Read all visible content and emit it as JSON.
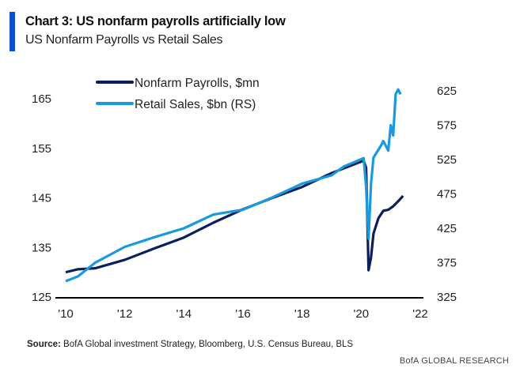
{
  "header": {
    "title": "Chart 3: US nonfarm payrolls artificially low",
    "subtitle": "US Nonfarm Payrolls vs Retail Sales"
  },
  "footer": {
    "source_label": "Source:",
    "source_text": "BofA Global investment Strategy, Bloomberg, U.S. Census Bureau, BLS",
    "brand": "BofA GLOBAL RESEARCH"
  },
  "chart_data": {
    "type": "line",
    "title": "Chart 3: US nonfarm payrolls artificially low",
    "subtitle": "US Nonfarm Payrolls vs Retail Sales",
    "x_ticks": [
      "'10",
      "'12",
      "'14",
      "'16",
      "'18",
      "'20",
      "'22"
    ],
    "xlim": [
      2010,
      2022
    ],
    "y_left": {
      "lim": [
        125,
        165
      ],
      "ticks": [
        125,
        135,
        145,
        155,
        165
      ]
    },
    "y_right": {
      "lim": [
        325,
        625
      ],
      "ticks": [
        325,
        375,
        425,
        475,
        525,
        575,
        625
      ]
    },
    "grid": false,
    "legend_placement": "top-left",
    "series": [
      {
        "name": "Nonfarm Payrolls, $mn",
        "axis": "left",
        "color": "#0b1f5c",
        "x": [
          "2010-01",
          "2010-06",
          "2011-01",
          "2012-01",
          "2013-01",
          "2014-01",
          "2015-01",
          "2016-01",
          "2017-01",
          "2018-01",
          "2019-01",
          "2020-02",
          "2020-03",
          "2020-04",
          "2020-05",
          "2020-06",
          "2020-08",
          "2020-10",
          "2020-12",
          "2021-02",
          "2021-04",
          "2021-06"
        ],
        "values": [
          130.0,
          130.6,
          130.8,
          132.5,
          134.8,
          137.0,
          140.0,
          142.7,
          145.0,
          147.2,
          150.0,
          152.5,
          151.1,
          130.4,
          133.0,
          137.8,
          140.9,
          142.4,
          142.6,
          143.3,
          144.3,
          145.4
        ]
      },
      {
        "name": "Retail Sales, $bn (RS)",
        "axis": "right",
        "color": "#1a9ade",
        "x": [
          "2010-01",
          "2010-06",
          "2011-01",
          "2012-01",
          "2013-01",
          "2014-01",
          "2015-01",
          "2016-01",
          "2017-01",
          "2018-01",
          "2019-01",
          "2019-06",
          "2020-02",
          "2020-03",
          "2020-04",
          "2020-05",
          "2020-06",
          "2020-09",
          "2020-10",
          "2020-12",
          "2021-01",
          "2021-02",
          "2021-03",
          "2021-04",
          "2021-05"
        ],
        "values": [
          348,
          355,
          375,
          398,
          412,
          425,
          445,
          452,
          470,
          490,
          502,
          515,
          527,
          485,
          410,
          490,
          528,
          545,
          552,
          538,
          575,
          560,
          620,
          627,
          620
        ]
      }
    ]
  }
}
